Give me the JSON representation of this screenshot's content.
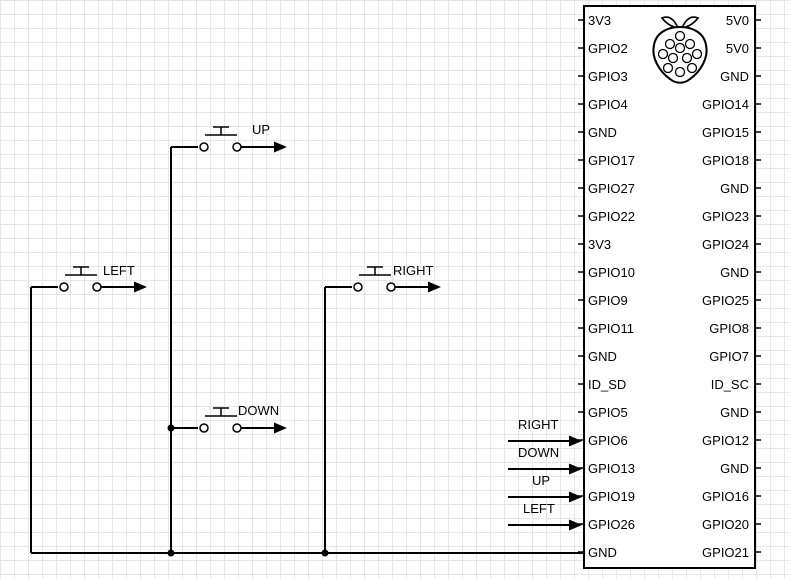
{
  "buttons": {
    "up": "UP",
    "left": "LEFT",
    "right": "RIGHT",
    "down": "DOWN"
  },
  "signals": [
    "RIGHT",
    "DOWN",
    "UP",
    "LEFT"
  ],
  "header": {
    "left_pins": [
      "3V3",
      "GPIO2",
      "GPIO3",
      "GPIO4",
      "GND",
      "GPIO17",
      "GPIO27",
      "GPIO22",
      "3V3",
      "GPIO10",
      "GPIO9",
      "GPIO11",
      "GND",
      "ID_SD",
      "GPIO5",
      "GPIO6",
      "GPIO13",
      "GPIO19",
      "GPIO26",
      "GND"
    ],
    "right_pins": [
      "5V0",
      "5V0",
      "GND",
      "GPIO14",
      "GPIO15",
      "GPIO18",
      "GND",
      "GPIO23",
      "GPIO24",
      "GND",
      "GPIO25",
      "GPIO8",
      "GPIO7",
      "ID_SC",
      "GND",
      "GPIO12",
      "GND",
      "GPIO16",
      "GPIO20",
      "GPIO21"
    ]
  },
  "logo": "raspberry-pi-logo"
}
